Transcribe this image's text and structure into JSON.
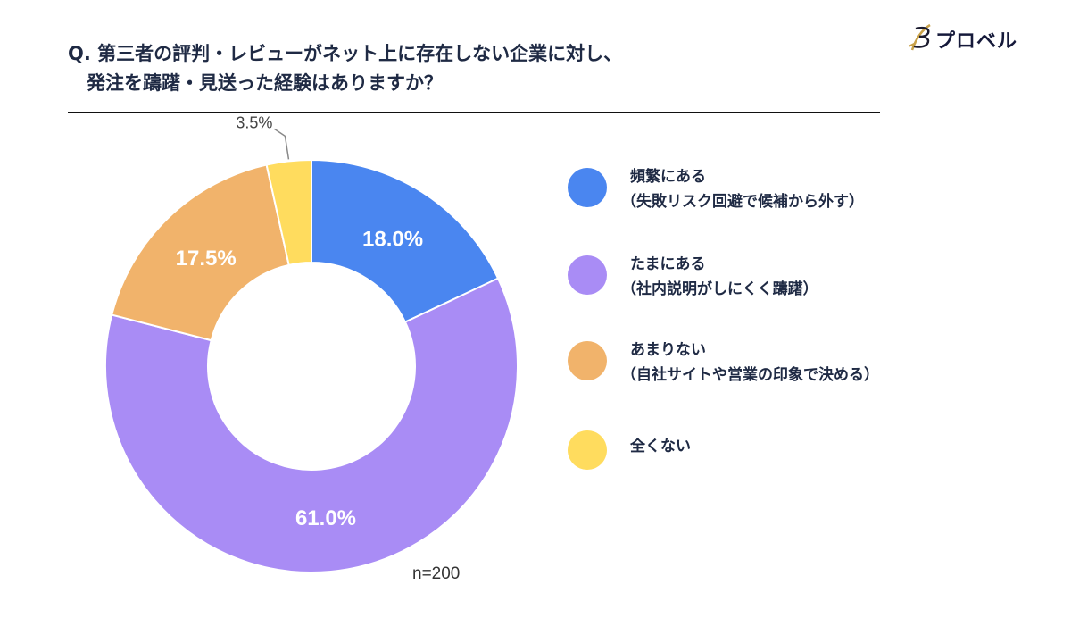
{
  "header": {
    "title_line1": "Q. 第三者の評判・レビューがネット上に存在しない企業に対し、",
    "title_line2": "発注を躊躇・見送った経験はありますか？"
  },
  "brand": {
    "name": "プロベル",
    "icon": "feather-b-logo-icon",
    "color": "#c9a24a"
  },
  "chart_data": {
    "type": "pie",
    "variant": "donut",
    "title": "Q. 第三者の評判・レビューがネット上に存在しない企業に対し、発注を躊躇・見送った経験はありますか？",
    "sample_size_label": "n=200",
    "legend_position": "right",
    "slices": [
      {
        "label": "頻繁にある",
        "sublabel": "（失敗リスク回避で候補から外す）",
        "value": 18.0,
        "value_label": "18.0%",
        "color": "#4a86f0"
      },
      {
        "label": "たまにある",
        "sublabel": "（社内説明がしにくく躊躇）",
        "value": 61.0,
        "value_label": "61.0%",
        "color": "#a98cf5"
      },
      {
        "label": "あまりない",
        "sublabel": "（自社サイトや営業の印象で決める）",
        "value": 17.5,
        "value_label": "17.5%",
        "color": "#f1b36b"
      },
      {
        "label": "全くない",
        "sublabel": "",
        "value": 3.5,
        "value_label": "3.5%",
        "color": "#ffdc5e"
      }
    ]
  }
}
